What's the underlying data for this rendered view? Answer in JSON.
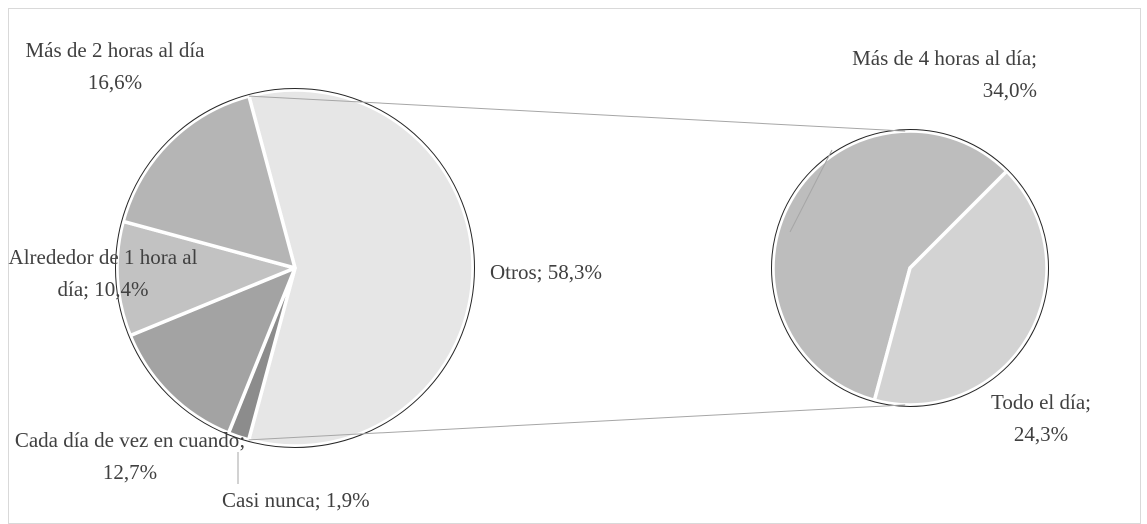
{
  "chart_data": {
    "type": "pie-of-pie",
    "categories": [
      "Otros",
      "Casi nunca",
      "Cada día de vez en cuando",
      "Alrededor de 1 hora al día",
      "Más de 2 horas al día"
    ],
    "values": [
      58.3,
      1.9,
      12.7,
      10.4,
      16.6
    ],
    "value_labels": [
      "58,3%",
      "1,9%",
      "12,7%",
      "10,4%",
      "16,6%"
    ],
    "colors": [
      "#e6e6e6",
      "#8c8c8c",
      "#a3a3a3",
      "#c2c2c2",
      "#b5b5b5"
    ],
    "label_separator": ";",
    "secondary": {
      "categories": [
        "Más de 4 horas al día",
        "Todo el día"
      ],
      "values": [
        34.0,
        24.3
      ],
      "value_labels": [
        "34,0%",
        "24,3%"
      ],
      "colors": [
        "#bdbdbd",
        "#d3d3d3"
      ]
    }
  }
}
